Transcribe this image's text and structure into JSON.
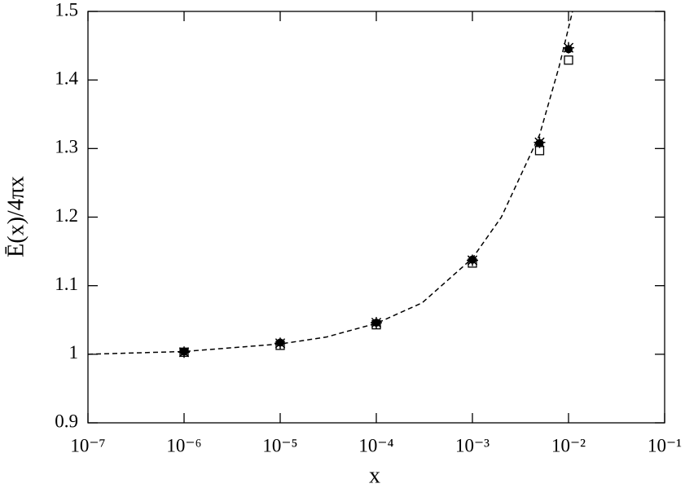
{
  "chart_data": {
    "type": "scatter",
    "xlabel": "x",
    "ylabel": "Ē(x)/4πx",
    "xscale": "log",
    "xlim": [
      1e-07,
      0.1
    ],
    "xticks": [
      {
        "value": 1e-07,
        "label": "10⁻⁷"
      },
      {
        "value": 1e-06,
        "label": "10⁻⁶"
      },
      {
        "value": 1e-05,
        "label": "10⁻⁵"
      },
      {
        "value": 0.0001,
        "label": "10⁻⁴"
      },
      {
        "value": 0.001,
        "label": "10⁻³"
      },
      {
        "value": 0.01,
        "label": "10⁻²"
      },
      {
        "value": 0.1,
        "label": "10⁻¹"
      }
    ],
    "ylim": [
      0.9,
      1.5
    ],
    "yticks": [
      0.9,
      1,
      1.1,
      1.2,
      1.3,
      1.4,
      1.5
    ],
    "grid": false,
    "series": [
      {
        "marker": "line",
        "style": "dashed",
        "color": "#000000",
        "x": [
          1e-07,
          1e-06,
          1e-05,
          3e-05,
          0.0001,
          0.0003,
          0.001,
          0.002,
          0.005,
          0.008,
          0.011
        ],
        "values": [
          1.0,
          1.004,
          1.015,
          1.025,
          1.045,
          1.075,
          1.14,
          1.2,
          1.32,
          1.42,
          1.5
        ]
      },
      {
        "marker": "circle",
        "color": "#000000",
        "x": [
          1e-06,
          1e-05,
          0.0001,
          0.001,
          0.005,
          0.01
        ],
        "values": [
          1.004,
          1.017,
          1.046,
          1.138,
          1.308,
          1.445
        ]
      },
      {
        "marker": "square",
        "color": "#000000",
        "x": [
          1e-06,
          1e-05,
          0.0001,
          0.001,
          0.005,
          0.01
        ],
        "values": [
          1.003,
          1.013,
          1.043,
          1.133,
          1.297,
          1.429
        ]
      },
      {
        "marker": "star",
        "color": "#000000",
        "x": [
          1e-06,
          1e-05,
          0.0001,
          0.001,
          0.005,
          0.01
        ],
        "values": [
          1.003,
          1.016,
          1.046,
          1.137,
          1.309,
          1.447
        ]
      }
    ]
  }
}
